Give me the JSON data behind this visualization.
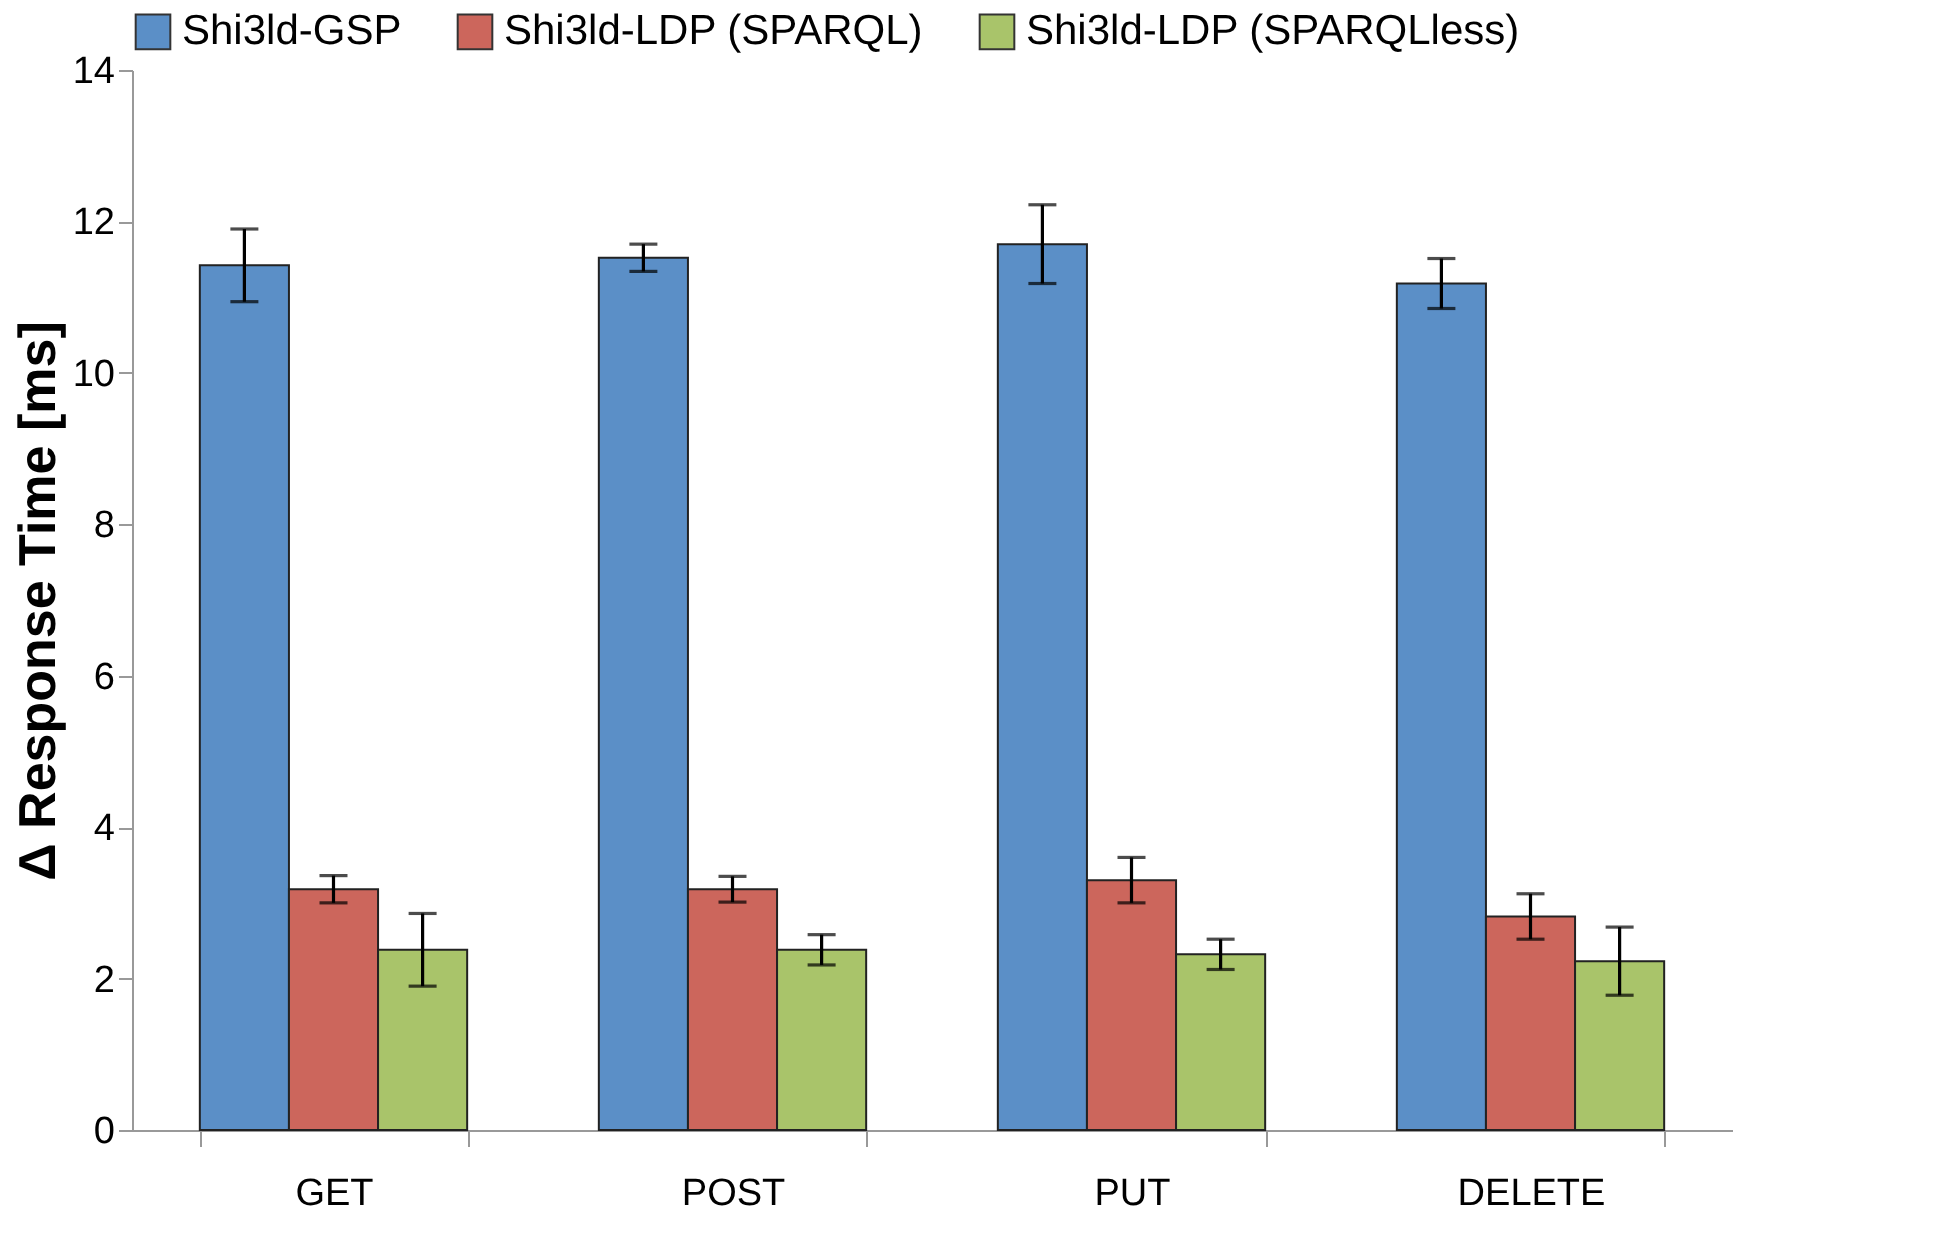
{
  "chart_data": {
    "type": "bar",
    "ylabel": "Δ Response Time  [ms]",
    "categories": [
      "GET",
      "POST",
      "PUT",
      "DELETE"
    ],
    "series": [
      {
        "name": "Shi3ld-GSP",
        "color": "#5b8fc7",
        "values": [
          11.42,
          11.52,
          11.7,
          11.18
        ],
        "errors": [
          0.48,
          0.18,
          0.52,
          0.33
        ]
      },
      {
        "name": "Shi3ld-LDP (SPARQL)",
        "color": "#cc665c",
        "values": [
          3.18,
          3.18,
          3.3,
          2.82
        ],
        "errors": [
          0.18,
          0.17,
          0.3,
          0.3
        ]
      },
      {
        "name": "Shi3ld-LDP (SPARQLless)",
        "color": "#a9c46a",
        "values": [
          2.38,
          2.38,
          2.32,
          2.23
        ],
        "errors": [
          0.48,
          0.2,
          0.2,
          0.45
        ]
      }
    ],
    "ylim": [
      0,
      14
    ],
    "yticks": [
      0,
      2,
      4,
      6,
      8,
      10,
      12,
      14
    ],
    "grid": false,
    "legend": "top"
  }
}
